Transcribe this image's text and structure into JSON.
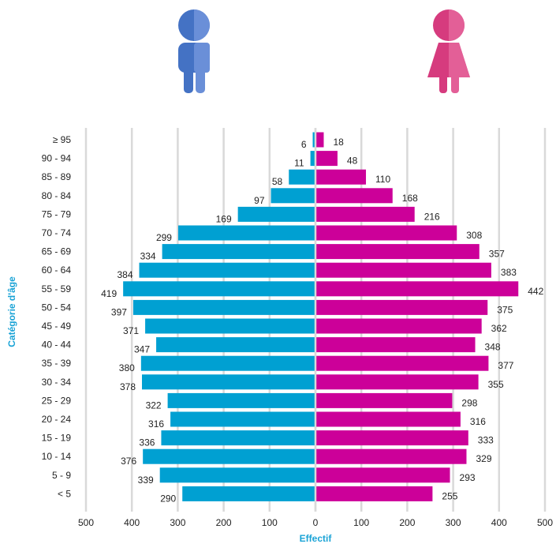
{
  "chart_data": {
    "type": "bar",
    "orientation": "horizontal-population-pyramid",
    "ylabel": "Catégorie d'âge",
    "xlabel": "Effectif",
    "xlim": [
      -500,
      500
    ],
    "xticks": [
      -500,
      -400,
      -300,
      -200,
      -100,
      0,
      100,
      200,
      300,
      400,
      500
    ],
    "xtick_labels": [
      "500",
      "400",
      "300",
      "200",
      "100",
      "0",
      "100",
      "200",
      "300",
      "400",
      "500"
    ],
    "grid": "vertical",
    "categories": [
      "≥ 95",
      "90 - 94",
      "85 - 89",
      "80 - 84",
      "75 - 79",
      "70 - 74",
      "65 - 69",
      "60 - 64",
      "55 - 59",
      "50 - 54",
      "45 - 49",
      "40 - 44",
      "35 - 39",
      "30 - 34",
      "25 - 29",
      "20 - 24",
      "15 - 19",
      "10 - 14",
      "5 - 9",
      "< 5"
    ],
    "series": [
      {
        "key": "men",
        "icon": "male-figure-icon",
        "color": "#00a0d2",
        "values": [
          6,
          11,
          58,
          97,
          169,
          299,
          334,
          384,
          419,
          397,
          371,
          347,
          380,
          378,
          322,
          316,
          336,
          376,
          339,
          290
        ]
      },
      {
        "key": "women",
        "icon": "female-figure-icon",
        "color": "#cc0099",
        "values": [
          18,
          48,
          110,
          168,
          216,
          308,
          357,
          383,
          442,
          375,
          362,
          348,
          377,
          355,
          298,
          316,
          333,
          329,
          293,
          255
        ]
      }
    ]
  },
  "icons": {
    "male": {
      "name": "male-figure-icon",
      "colors": [
        "#4472c4",
        "#6a8fd8"
      ]
    },
    "female": {
      "name": "female-figure-icon",
      "colors": [
        "#d63b7e",
        "#e35f97"
      ]
    }
  }
}
